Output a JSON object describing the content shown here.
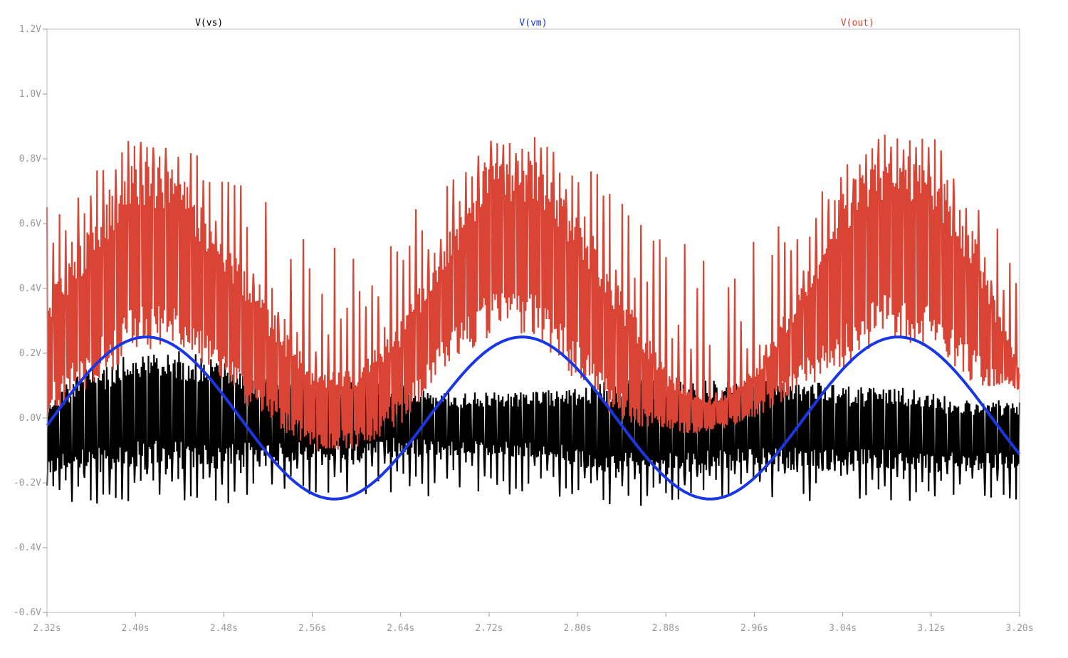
{
  "chart_data": {
    "type": "line",
    "title": "",
    "xlabel": "",
    "ylabel": "",
    "xlim": [
      2.32,
      3.2
    ],
    "ylim": [
      -0.6,
      1.2
    ],
    "x_ticks": [
      {
        "v": 2.32,
        "label": "2.32s"
      },
      {
        "v": 2.4,
        "label": "2.40s"
      },
      {
        "v": 2.48,
        "label": "2.48s"
      },
      {
        "v": 2.56,
        "label": "2.56s"
      },
      {
        "v": 2.64,
        "label": "2.64s"
      },
      {
        "v": 2.72,
        "label": "2.72s"
      },
      {
        "v": 2.8,
        "label": "2.80s"
      },
      {
        "v": 2.88,
        "label": "2.88s"
      },
      {
        "v": 2.96,
        "label": "2.96s"
      },
      {
        "v": 3.04,
        "label": "3.04s"
      },
      {
        "v": 3.12,
        "label": "3.12s"
      },
      {
        "v": 3.2,
        "label": "3.20s"
      }
    ],
    "y_ticks": [
      {
        "v": 1.2,
        "label": "1.2V"
      },
      {
        "v": 1.0,
        "label": "1.0V"
      },
      {
        "v": 0.8,
        "label": "0.8V"
      },
      {
        "v": 0.6,
        "label": "0.6V"
      },
      {
        "v": 0.4,
        "label": "0.4V"
      },
      {
        "v": 0.2,
        "label": "0.2V"
      },
      {
        "v": 0.0,
        "label": "0.0V"
      },
      {
        "v": -0.2,
        "label": "-0.2V"
      },
      {
        "v": -0.4,
        "label": "-0.4V"
      },
      {
        "v": -0.6,
        "label": "-0.6V"
      }
    ],
    "grid": false,
    "legend_placement": "top",
    "series": [
      {
        "name": "V(vs)",
        "color": "#000000",
        "style": "dense-noise band",
        "x": [
          2.32,
          2.36,
          2.4,
          2.44,
          2.48,
          2.52,
          2.56,
          2.6,
          2.64,
          2.68,
          2.72,
          2.76,
          2.8,
          2.84,
          2.88,
          2.92,
          2.96,
          3.0,
          3.04,
          3.08,
          3.12,
          3.16,
          3.2
        ],
        "upper": [
          0.08,
          0.16,
          0.2,
          0.21,
          0.18,
          0.12,
          0.12,
          0.12,
          0.12,
          0.08,
          0.08,
          0.08,
          0.1,
          0.12,
          0.12,
          0.12,
          0.12,
          0.12,
          0.1,
          0.1,
          0.08,
          0.06,
          0.05
        ],
        "lower": [
          -0.18,
          -0.17,
          -0.16,
          -0.16,
          -0.16,
          -0.14,
          -0.13,
          -0.13,
          -0.12,
          -0.12,
          -0.12,
          -0.12,
          -0.15,
          -0.18,
          -0.18,
          -0.17,
          -0.16,
          -0.16,
          -0.16,
          -0.16,
          -0.17,
          -0.16,
          -0.16
        ],
        "spike_min": -0.35
      },
      {
        "name": "V(vm)",
        "color": "#1a37e6",
        "style": "line",
        "amplitude": 0.25,
        "frequency_hz": 2.941,
        "peak_times": [
          2.41,
          2.75,
          3.09
        ],
        "trough_times": [
          2.58,
          2.92
        ],
        "x": [
          2.32,
          2.36,
          2.41,
          2.46,
          2.5,
          2.54,
          2.58,
          2.62,
          2.66,
          2.71,
          2.75,
          2.79,
          2.84,
          2.88,
          2.92,
          2.96,
          3.01,
          3.05,
          3.09,
          3.13,
          3.17,
          3.2
        ],
        "values": [
          -0.06,
          0.15,
          0.25,
          0.16,
          0.0,
          -0.15,
          -0.25,
          -0.17,
          0.0,
          0.2,
          0.25,
          0.17,
          -0.05,
          -0.2,
          -0.25,
          -0.17,
          0.04,
          0.2,
          0.25,
          0.17,
          -0.03,
          -0.14
        ]
      },
      {
        "name": "V(out)",
        "color": "#d94434",
        "style": "dense-noise band",
        "x": [
          2.32,
          2.36,
          2.4,
          2.44,
          2.48,
          2.52,
          2.56,
          2.6,
          2.64,
          2.68,
          2.72,
          2.76,
          2.8,
          2.84,
          2.88,
          2.92,
          2.96,
          3.0,
          3.04,
          3.08,
          3.12,
          3.16,
          3.2
        ],
        "upper": [
          0.38,
          0.6,
          0.81,
          0.75,
          0.55,
          0.35,
          0.15,
          0.15,
          0.3,
          0.55,
          0.8,
          0.8,
          0.65,
          0.4,
          0.15,
          0.05,
          0.15,
          0.4,
          0.7,
          0.83,
          0.8,
          0.55,
          0.15
        ],
        "lower": [
          0.0,
          0.1,
          0.2,
          0.22,
          0.1,
          -0.02,
          -0.1,
          -0.1,
          -0.02,
          0.15,
          0.25,
          0.25,
          0.1,
          -0.02,
          -0.05,
          -0.05,
          0.0,
          0.08,
          0.15,
          0.25,
          0.2,
          0.1,
          0.08
        ],
        "peak_max": 0.93
      }
    ]
  }
}
